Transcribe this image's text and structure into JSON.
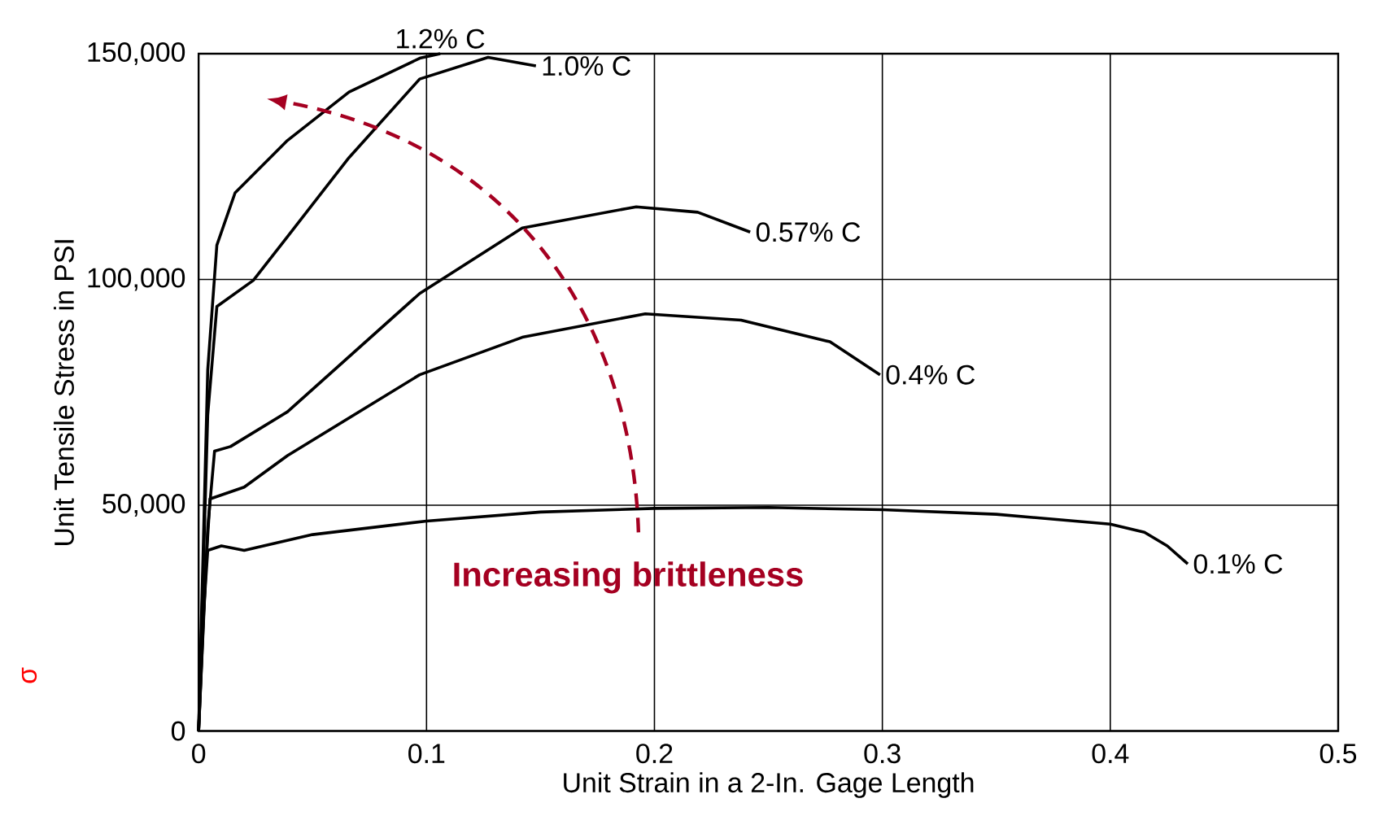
{
  "chart_data": {
    "type": "line",
    "xlabel": "Unit Strain in a 2-In. Gage Length",
    "ylabel": "Unit Tensile Stress in PSI",
    "annotations": [
      "Increasing brittleness",
      "σ"
    ],
    "xlim": [
      0,
      0.5
    ],
    "ylim": [
      0,
      150000
    ],
    "xticks": [
      0,
      0.1,
      0.2,
      0.3,
      0.4,
      0.5
    ],
    "yticks": [
      {
        "value": 0,
        "label": "0"
      },
      {
        "value": 50000,
        "label": "50,000"
      },
      {
        "value": 100000,
        "label": "100,000"
      },
      {
        "value": 150000,
        "label": "150,000"
      }
    ],
    "grid": true,
    "series": [
      {
        "name": "1.2% C",
        "color": "#000000",
        "x": [
          0,
          0.004,
          0.008,
          0.016,
          0.039,
          0.066,
          0.097,
          0.106
        ],
        "values": [
          0,
          80000,
          107600,
          119200,
          130800,
          141500,
          149000,
          150000
        ]
      },
      {
        "name": "1.0% C",
        "color": "#000000",
        "x": [
          0,
          0.004,
          0.008,
          0.024,
          0.039,
          0.066,
          0.097,
          0.127,
          0.148
        ],
        "values": [
          0,
          70000,
          94000,
          99800,
          109500,
          127000,
          144400,
          149200,
          147300
        ]
      },
      {
        "name": "0.57% C",
        "color": "#000000",
        "x": [
          0,
          0.004,
          0.007,
          0.014,
          0.039,
          0.097,
          0.142,
          0.192,
          0.219,
          0.242
        ],
        "values": [
          0,
          45000,
          62000,
          63000,
          70700,
          96900,
          111400,
          116100,
          114900,
          110500
        ]
      },
      {
        "name": "0.4% C",
        "color": "#000000",
        "x": [
          0,
          0.003,
          0.005,
          0.02,
          0.039,
          0.097,
          0.142,
          0.196,
          0.238,
          0.277,
          0.299
        ],
        "values": [
          0,
          35000,
          51400,
          54000,
          61000,
          78900,
          87200,
          92400,
          91000,
          86200,
          78900
        ]
      },
      {
        "name": "0.1% C",
        "color": "#000000",
        "x": [
          0,
          0.002,
          0.004,
          0.01,
          0.02,
          0.05,
          0.1,
          0.15,
          0.2,
          0.25,
          0.3,
          0.35,
          0.4,
          0.415,
          0.425,
          0.434
        ],
        "values": [
          0,
          25000,
          40000,
          41000,
          40000,
          43500,
          46500,
          48500,
          49300,
          49500,
          49000,
          48000,
          45800,
          44000,
          41000,
          37000
        ]
      }
    ]
  }
}
